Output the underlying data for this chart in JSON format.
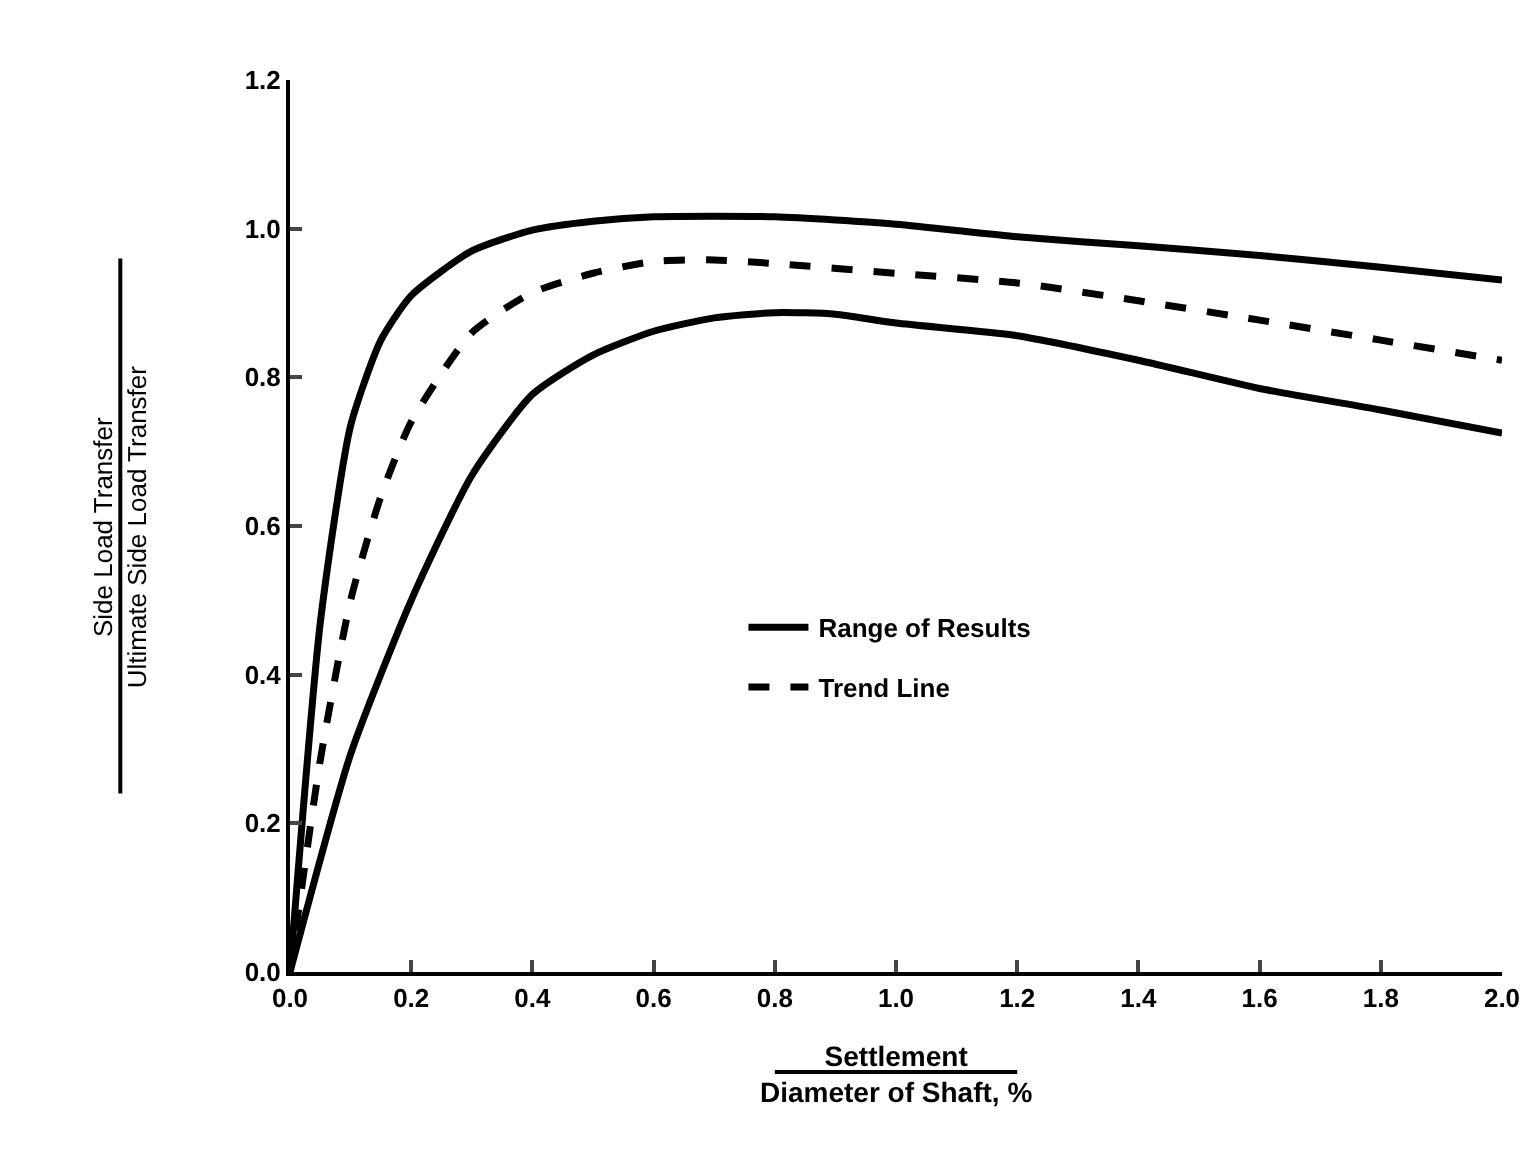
{
  "chart_data": {
    "type": "line",
    "xlabel": "Settlement\nDiameter of Shaft, %",
    "ylabel": "Side Load Transfer\nUltimate Side Load Transfer",
    "xlim": [
      0,
      2.0
    ],
    "ylim": [
      0,
      1.2
    ],
    "xticks": [
      {
        "value": 0,
        "label": "0.0"
      },
      {
        "value": 0.2,
        "label": "0.2"
      },
      {
        "value": 0.4,
        "label": "0.4"
      },
      {
        "value": 0.6,
        "label": "0.6"
      },
      {
        "value": 0.8,
        "label": "0.8"
      },
      {
        "value": 1.0,
        "label": "1.0"
      },
      {
        "value": 1.2,
        "label": "1.2"
      },
      {
        "value": 1.4,
        "label": "1.4"
      },
      {
        "value": 1.6,
        "label": "1.6"
      },
      {
        "value": 1.8,
        "label": "1.8"
      },
      {
        "value": 2.0,
        "label": "2.0"
      }
    ],
    "yticks": [
      {
        "value": 0,
        "label": "0.0"
      },
      {
        "value": 0.2,
        "label": "0.2"
      },
      {
        "value": 0.4,
        "label": "0.4"
      },
      {
        "value": 0.6,
        "label": "0.6"
      },
      {
        "value": 0.8,
        "label": "0.8"
      },
      {
        "value": 1.0,
        "label": "1.0"
      },
      {
        "value": 1.2,
        "label": "1.2"
      }
    ],
    "grid": false,
    "legend": "center",
    "marker": "none",
    "series": [
      {
        "name": "Range of Results",
        "color": "#000000",
        "line_style": "solid",
        "x": [
          0,
          0.05,
          0.1,
          0.15,
          0.2,
          0.3,
          0.4,
          0.5,
          0.6,
          0.8,
          1.0,
          1.2,
          1.4,
          1.6,
          1.8,
          2.0
        ],
        "values": [
          0,
          0.47,
          0.735,
          0.85,
          0.91,
          0.97,
          0.998,
          1.01,
          1.016,
          1.016,
          1.006,
          0.989,
          0.977,
          0.964,
          0.948,
          0.931
        ]
      },
      {
        "name": "Trend Line",
        "color": "#000000",
        "line_style": "dashed",
        "x": [
          0,
          0.05,
          0.1,
          0.15,
          0.2,
          0.3,
          0.4,
          0.5,
          0.6,
          0.7,
          0.8,
          1.0,
          1.2,
          1.4,
          1.6,
          1.8,
          2.0
        ],
        "values": [
          0,
          0.285,
          0.5,
          0.64,
          0.74,
          0.86,
          0.914,
          0.94,
          0.956,
          0.958,
          0.953,
          0.94,
          0.927,
          0.903,
          0.877,
          0.85,
          0.823
        ]
      },
      {
        "color": "#000000",
        "line_style": "solid",
        "x": [
          0,
          0.1,
          0.2,
          0.3,
          0.4,
          0.5,
          0.6,
          0.7,
          0.8,
          0.9,
          1.0,
          1.2,
          1.4,
          1.6,
          1.8,
          2.0
        ],
        "values": [
          0,
          0.293,
          0.5,
          0.668,
          0.777,
          0.83,
          0.862,
          0.88,
          0.887,
          0.885,
          0.873,
          0.856,
          0.823,
          0.785,
          0.756,
          0.725
        ]
      }
    ]
  }
}
